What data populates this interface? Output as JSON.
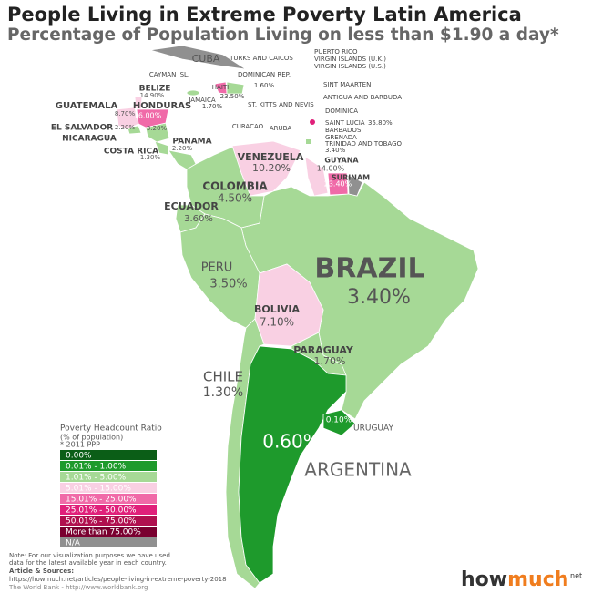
{
  "header": {
    "title": "People Living in Extreme Poverty Latin America",
    "subtitle": "Percentage of Population Living on less than $1.90 a day*"
  },
  "countries": [
    {
      "name": "BRAZIL",
      "value": "3.40%",
      "color": "#a6d996"
    },
    {
      "name": "ARGENTINA",
      "value": "0.60%",
      "color": "#1e9a2c"
    },
    {
      "name": "CHILE",
      "value": "1.30%",
      "color": "#a6d996"
    },
    {
      "name": "PERU",
      "value": "3.50%",
      "color": "#a6d996"
    },
    {
      "name": "BOLIVIA",
      "value": "7.10%",
      "color": "#f9d0e3"
    },
    {
      "name": "PARAGUAY",
      "value": "1.70%",
      "color": "#a6d996"
    },
    {
      "name": "URUGUAY",
      "value": "0.10%",
      "color": "#1e9a2c"
    },
    {
      "name": "COLOMBIA",
      "value": "4.50%",
      "color": "#a6d996"
    },
    {
      "name": "ECUADOR",
      "value": "3.60%",
      "color": "#a6d996"
    },
    {
      "name": "VENEZUELA",
      "value": "10.20%",
      "color": "#f9d0e3"
    },
    {
      "name": "GUYANA",
      "value": "14.00%",
      "color": "#f9d0e3"
    },
    {
      "name": "SURINAM",
      "value": "23.40%",
      "color": "#f06aa8"
    },
    {
      "name": "PANAMA",
      "value": "2.20%",
      "color": "#a6d996"
    },
    {
      "name": "COSTA RICA",
      "value": "1.30%",
      "color": "#a6d996"
    },
    {
      "name": "NICARAGUA",
      "value": "3.20%",
      "color": "#a6d996"
    },
    {
      "name": "EL SALVADOR",
      "value": "2.20%",
      "color": "#a6d996"
    },
    {
      "name": "HONDURAS",
      "value": "16.00%",
      "color": "#f06aa8"
    },
    {
      "name": "GUATEMALA",
      "value": "8.70%",
      "color": "#f9d0e3"
    },
    {
      "name": "BELIZE",
      "value": "14.90%",
      "color": "#f9d0e3"
    },
    {
      "name": "JAMAICA",
      "value": "1.70%",
      "color": "#a6d996"
    },
    {
      "name": "HAITI",
      "value": "23.50%",
      "color": "#f06aa8"
    },
    {
      "name": "DOMINICAN REP.",
      "value": "1.60%",
      "color": "#a6d996"
    },
    {
      "name": "SAINT LUCIA",
      "value": "35.80%",
      "color": "#e0207a"
    },
    {
      "name": "TRINIDAD AND TOBAGO",
      "value": "3.40%",
      "color": "#a6d996"
    }
  ],
  "labels": [
    "CUBA",
    "TURKS AND CAICOS",
    "CAYMAN ISL.",
    "PUERTO RICO",
    "VIRGIN ISLANDS (U.K.)",
    "VIRGIN ISLANDS (U.S.)",
    "SINT MAARTEN",
    "ANTIGUA AND BARBUDA",
    "ST. KITTS AND NEVIS",
    "DOMINICA",
    "BARBADOS",
    "GRENADA",
    "CURACAO",
    "ARUBA"
  ],
  "na_color": "#909090",
  "legend": {
    "title": "Poverty Headcount Ratio",
    "subtitle": "(% of population)",
    "note": "* 2011 PPP",
    "items": [
      {
        "label": "0.00%",
        "color": "#0b5e17"
      },
      {
        "label": "0.01% - 1.00%",
        "color": "#1e9a2c"
      },
      {
        "label": "1.01% - 5.00%",
        "color": "#a6d996"
      },
      {
        "label": "5.01% - 15.00%",
        "color": "#f9d0e3"
      },
      {
        "label": "15.01% - 25.00%",
        "color": "#f06aa8"
      },
      {
        "label": "25.01% - 50.00%",
        "color": "#e0207a"
      },
      {
        "label": "50.01% - 75.00%",
        "color": "#b0104f"
      },
      {
        "label": "More than 75.00%",
        "color": "#7a0030"
      },
      {
        "label": "N/A",
        "color": "#909090"
      }
    ]
  },
  "footer": {
    "note": "Note: For our visualization purposes we have used",
    "note2": "data for the latest available year in each country.",
    "sources_title": "Article & Sources:",
    "url": "https://howmuch.net/articles/people-living-in-extreme-poverty-2018",
    "source": "The World Bank - http://www.worldbank.org"
  },
  "logo": {
    "how": "how",
    "much": "much",
    "net": "net"
  }
}
